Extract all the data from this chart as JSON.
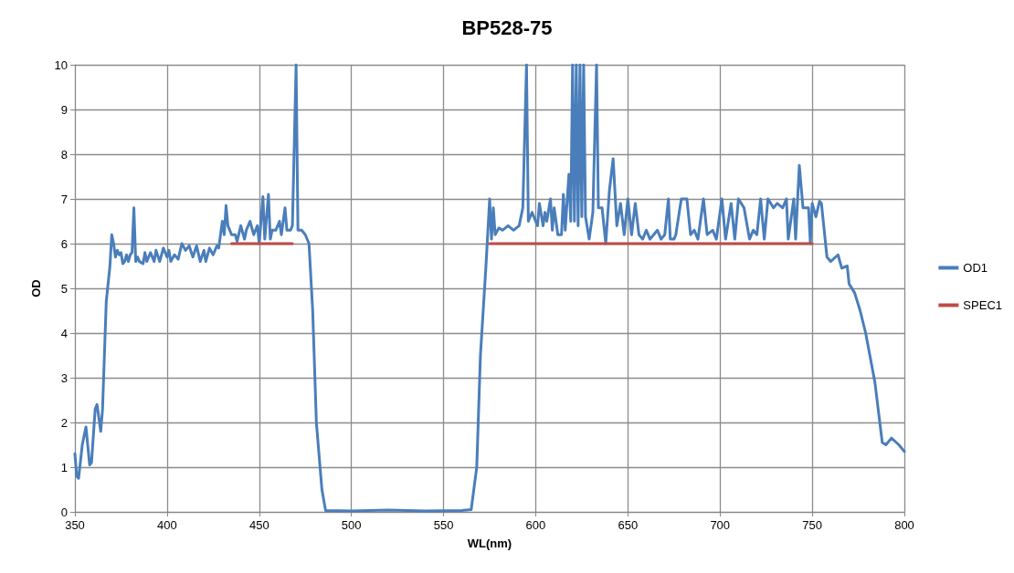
{
  "chart_data": {
    "type": "line",
    "title": "BP528-75",
    "xlabel": "WL(nm)",
    "ylabel": "OD",
    "xlim": [
      350,
      800
    ],
    "xticks": [
      350,
      400,
      450,
      500,
      550,
      600,
      650,
      700,
      750,
      800
    ],
    "ylim": [
      0,
      10
    ],
    "yticks": [
      0,
      1,
      2,
      3,
      4,
      5,
      6,
      7,
      8,
      9,
      10
    ],
    "grid": true,
    "legend": "right",
    "marker": "none",
    "line_style": "solid",
    "series": [
      {
        "name": "OD1",
        "color": "#4a7ebb",
        "x": [
          350,
          351,
          352,
          354,
          356,
          358,
          359,
          361,
          362,
          364,
          365,
          367,
          369,
          370,
          371,
          372,
          373,
          374,
          375,
          376,
          377,
          378,
          379,
          380,
          381,
          382,
          383,
          384,
          385,
          387,
          388,
          389,
          391,
          393,
          394,
          396,
          398,
          400,
          401,
          402,
          404,
          406,
          408,
          410,
          412,
          414,
          416,
          418,
          420,
          421,
          423,
          425,
          427,
          428,
          430,
          431,
          432,
          433,
          435,
          437,
          438,
          440,
          442,
          443,
          445,
          447,
          449,
          450,
          452,
          453,
          455,
          456,
          457,
          459,
          461,
          462,
          464,
          465,
          467,
          468,
          470,
          471,
          473,
          475,
          477,
          479,
          481,
          484,
          486,
          500,
          520,
          540,
          560,
          565,
          568,
          570,
          573,
          575,
          576,
          577,
          578,
          580,
          582,
          585,
          588,
          591,
          593,
          595,
          596,
          598,
          601,
          602,
          604,
          605,
          606,
          608,
          609,
          610,
          612,
          614,
          615,
          616,
          618,
          619,
          620,
          621,
          622,
          623,
          624,
          625,
          626,
          627,
          629,
          631,
          633,
          634,
          636,
          638,
          640,
          642,
          644,
          646,
          648,
          650,
          652,
          654,
          656,
          658,
          660,
          662,
          664,
          666,
          668,
          670,
          672,
          673,
          675,
          676,
          679,
          682,
          684,
          686,
          688,
          691,
          693,
          696,
          698,
          701,
          703,
          706,
          708,
          710,
          713,
          716,
          718,
          720,
          722,
          724,
          726,
          729,
          731,
          734,
          736,
          737,
          740,
          741,
          743,
          745,
          748,
          749,
          750,
          752,
          754,
          755,
          758,
          760,
          764,
          766,
          769,
          770,
          773,
          776,
          779,
          784,
          788,
          790,
          793,
          797,
          800
        ],
        "values": [
          1.3,
          0.8,
          0.75,
          1.5,
          1.9,
          1.05,
          1.1,
          2.3,
          2.4,
          1.8,
          2.3,
          4.7,
          5.5,
          6.2,
          6.0,
          5.7,
          5.85,
          5.75,
          5.8,
          5.55,
          5.6,
          5.75,
          5.6,
          5.75,
          5.8,
          6.8,
          5.6,
          5.7,
          5.6,
          5.55,
          5.8,
          5.6,
          5.8,
          5.6,
          5.85,
          5.6,
          5.9,
          5.7,
          5.85,
          5.6,
          5.75,
          5.65,
          6.0,
          5.85,
          5.95,
          5.7,
          5.95,
          5.6,
          5.85,
          5.6,
          5.9,
          5.75,
          5.95,
          5.9,
          6.5,
          6.2,
          6.85,
          6.4,
          6.2,
          6.2,
          6.05,
          6.4,
          6.1,
          6.3,
          6.5,
          6.2,
          6.4,
          6.0,
          7.05,
          6.1,
          7.1,
          6.1,
          6.3,
          6.3,
          6.5,
          6.2,
          6.8,
          6.3,
          6.3,
          6.4,
          10,
          6.3,
          6.3,
          6.2,
          6.0,
          4.5,
          2.0,
          0.5,
          0.03,
          0.02,
          0.04,
          0.02,
          0.03,
          0.05,
          1.0,
          3.5,
          5.5,
          7.0,
          6.1,
          6.8,
          6.2,
          6.35,
          6.3,
          6.4,
          6.3,
          6.4,
          6.8,
          10,
          6.5,
          6.7,
          6.4,
          6.9,
          6.4,
          6.7,
          6.5,
          7.0,
          6.3,
          6.8,
          6.2,
          6.2,
          7.1,
          6.3,
          7.55,
          6.5,
          10,
          6.5,
          10,
          6.4,
          10,
          6.6,
          10,
          6.6,
          6.1,
          6.7,
          10,
          6.8,
          6.8,
          6.0,
          7.2,
          7.9,
          6.4,
          6.9,
          6.2,
          7.0,
          6.2,
          6.9,
          6.2,
          6.1,
          6.3,
          6.1,
          6.2,
          6.3,
          6.1,
          6.2,
          7.0,
          6.1,
          6.1,
          6.2,
          7.0,
          7.0,
          6.2,
          6.3,
          6.1,
          7.0,
          6.2,
          6.3,
          6.1,
          7.0,
          6.1,
          6.9,
          6.1,
          7.0,
          6.8,
          6.1,
          6.3,
          6.2,
          7.0,
          6.1,
          7.0,
          6.8,
          6.9,
          6.8,
          7.0,
          6.1,
          7.0,
          6.1,
          7.75,
          6.8,
          6.8,
          6.0,
          6.9,
          6.6,
          6.95,
          6.9,
          5.7,
          5.6,
          5.75,
          5.45,
          5.5,
          5.1,
          4.9,
          4.5,
          4.0,
          2.9,
          1.55,
          1.5,
          1.65,
          1.5,
          1.35
        ]
      },
      {
        "name": "SPEC1",
        "color": "#be4b48",
        "x": [
          435,
          468,
          469,
          575,
          750
        ],
        "values": [
          6,
          6,
          null,
          6,
          6
        ]
      }
    ]
  }
}
